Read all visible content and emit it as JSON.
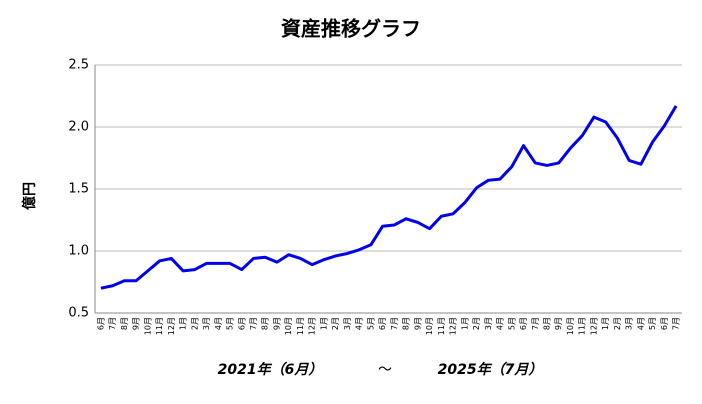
{
  "chart_data": {
    "type": "line",
    "title": "資産推移グラフ",
    "y_label": "億円",
    "x_label_parts": [
      "2021年（6月）",
      "～",
      "2025年（7月）"
    ],
    "categories": [
      "6月",
      "7月",
      "8月",
      "9月",
      "10月",
      "11月",
      "12月",
      "1月",
      "2月",
      "3月",
      "4月",
      "5月",
      "6月",
      "7月",
      "8月",
      "9月",
      "10月",
      "11月",
      "12月",
      "1月",
      "2月",
      "3月",
      "4月",
      "5月",
      "6月",
      "7月",
      "8月",
      "9月",
      "10月",
      "11月",
      "12月",
      "1月",
      "2月",
      "3月",
      "4月",
      "5月",
      "6月",
      "7月",
      "8月",
      "9月",
      "10月",
      "11月",
      "12月",
      "1月",
      "2月",
      "3月",
      "4月",
      "5月",
      "6月",
      "7月"
    ],
    "series": [
      {
        "color": "#0000ee",
        "values": [
          0.7,
          0.72,
          0.76,
          0.76,
          0.84,
          0.92,
          0.94,
          0.84,
          0.85,
          0.9,
          0.9,
          0.9,
          0.85,
          0.94,
          0.95,
          0.91,
          0.97,
          0.94,
          0.89,
          0.93,
          0.96,
          0.98,
          1.01,
          1.05,
          1.2,
          1.21,
          1.26,
          1.23,
          1.18,
          1.28,
          1.3,
          1.39,
          1.51,
          1.57,
          1.58,
          1.68,
          1.85,
          1.71,
          1.69,
          1.71,
          1.83,
          1.93,
          2.08,
          2.04,
          1.91,
          1.73,
          1.7,
          1.88,
          2.01,
          2.17
        ]
      }
    ],
    "ylim": [
      0.5,
      2.5
    ],
    "yticks": [
      0.5,
      {
        "value": 1.0,
        "label": "1.0"
      },
      1.5,
      {
        "value": 2.0,
        "label": "2.0"
      },
      2.5
    ],
    "grid": true
  }
}
